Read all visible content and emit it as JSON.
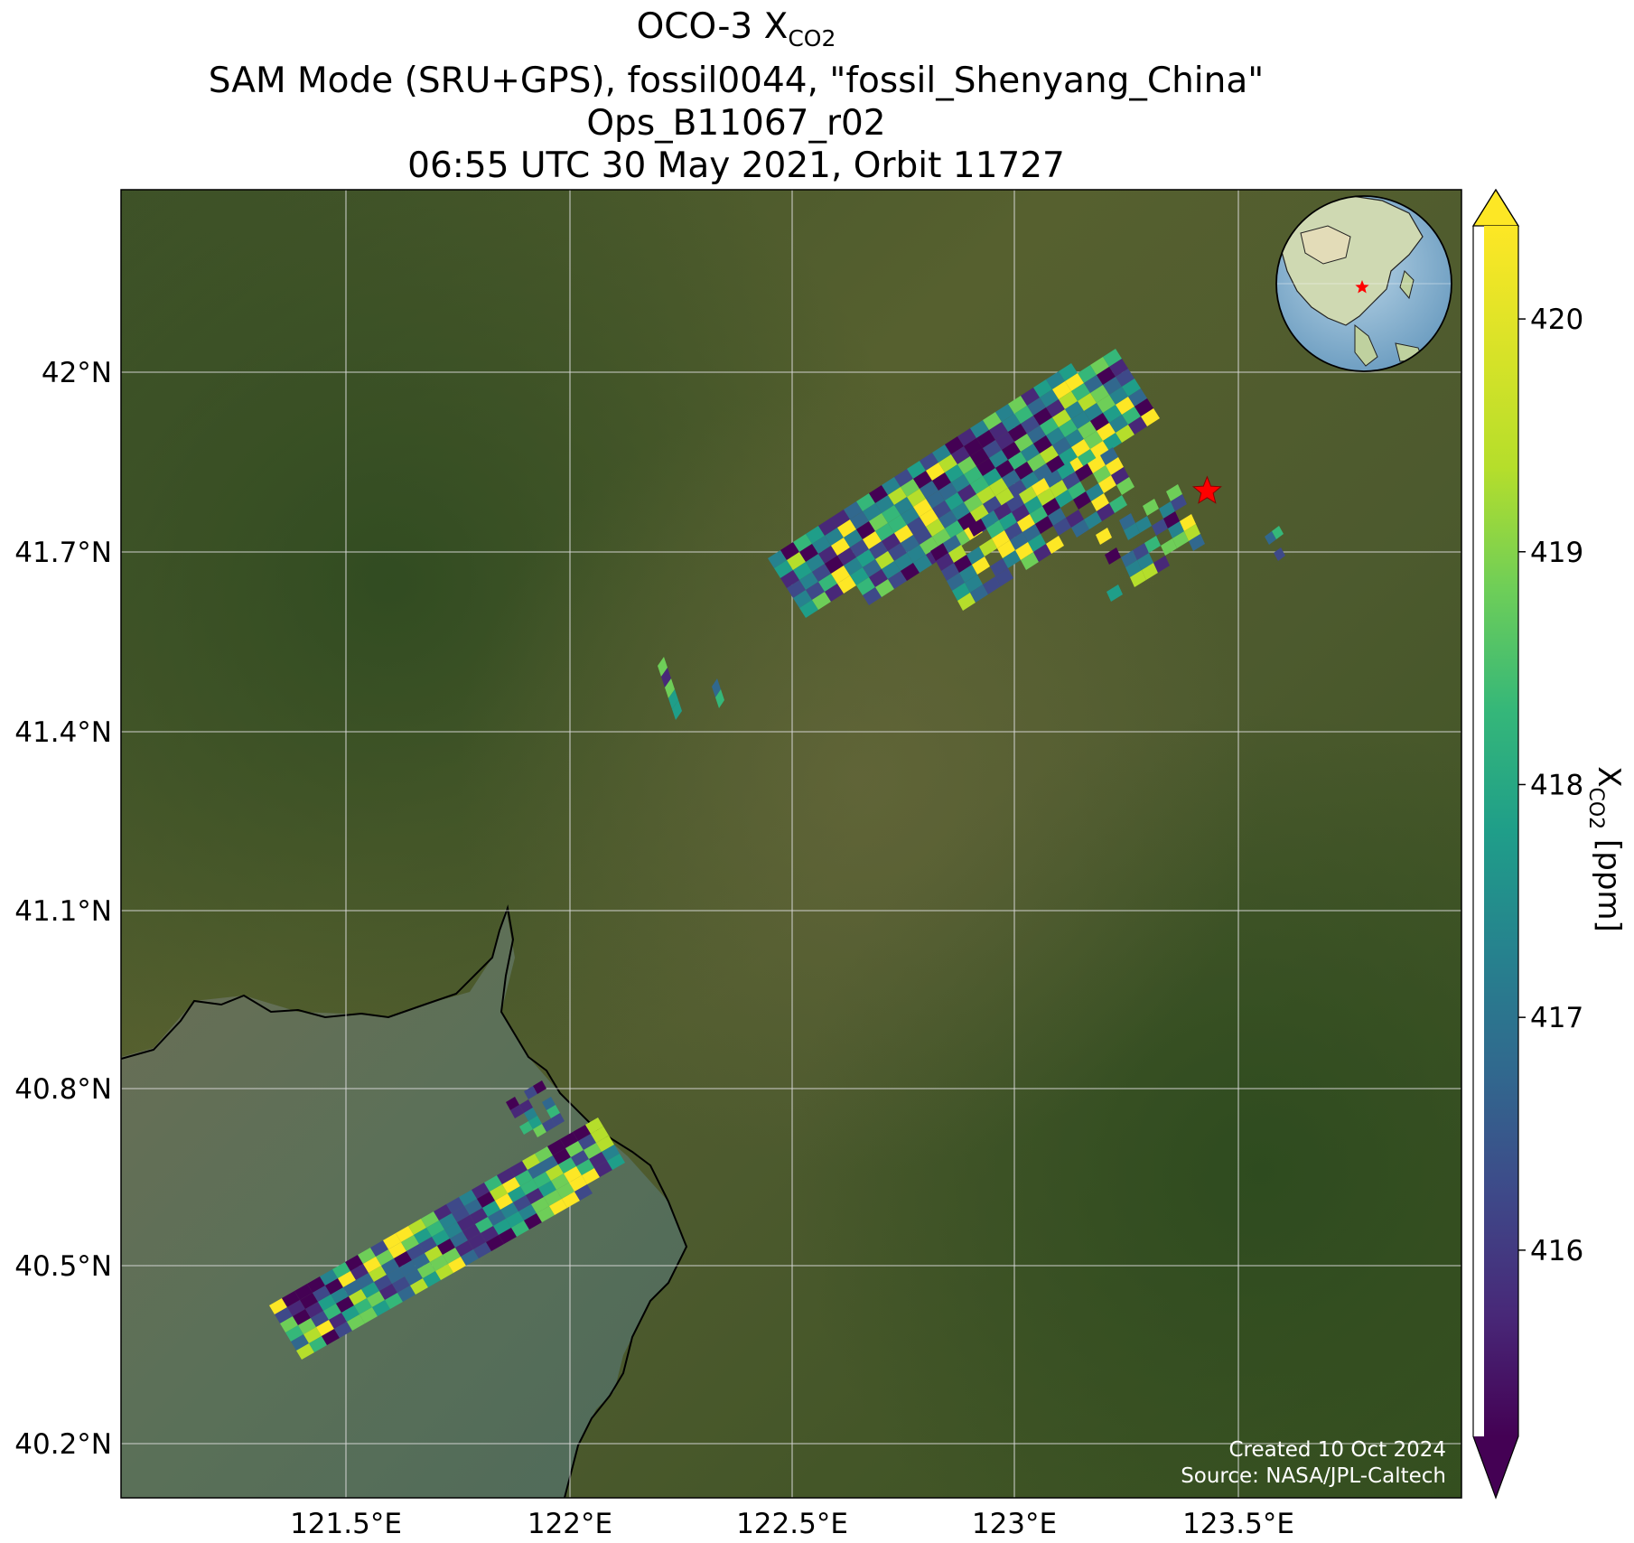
{
  "title": {
    "line1_prefix": "OCO-3 X",
    "line1_sub": "CO2",
    "line2": "SAM Mode (SRU+GPS), fossil0044, \"fossil_Shenyang_China\"",
    "line3": "Ops_B11067_r02",
    "line4": "06:55 UTC 30 May 2021, Orbit 11727"
  },
  "lat_ticks": [
    "42°N",
    "41.7°N",
    "41.4°N",
    "41.1°N",
    "40.8°N",
    "40.5°N",
    "40.2°N"
  ],
  "lon_ticks": [
    "121.5°E",
    "122°E",
    "122.5°E",
    "123°E",
    "123.5°E"
  ],
  "colorbar": {
    "label_prefix": "X",
    "label_sub": "CO2",
    "label_suffix": " [ppm]",
    "ticks": [
      "420",
      "419",
      "418",
      "417",
      "416"
    ],
    "range": [
      415.2,
      420.4
    ],
    "colormap": "viridis",
    "extend": "both"
  },
  "credits": {
    "created": "Created 10 Oct 2024",
    "source": "Source: NASA/JPL-Caltech"
  },
  "map": {
    "lon_range": [
      121.0,
      124.0
    ],
    "lat_range": [
      40.1,
      42.3
    ],
    "target_marker": {
      "lon": 123.43,
      "lat": 41.8,
      "color": "#ff0000"
    },
    "inset_globe": {
      "marker_color": "#ff0000"
    }
  },
  "colors": {
    "terrain": "#4a5a30",
    "sea": "#5b6e55",
    "gridline": "#cfcfcf",
    "coastline": "#000000"
  }
}
